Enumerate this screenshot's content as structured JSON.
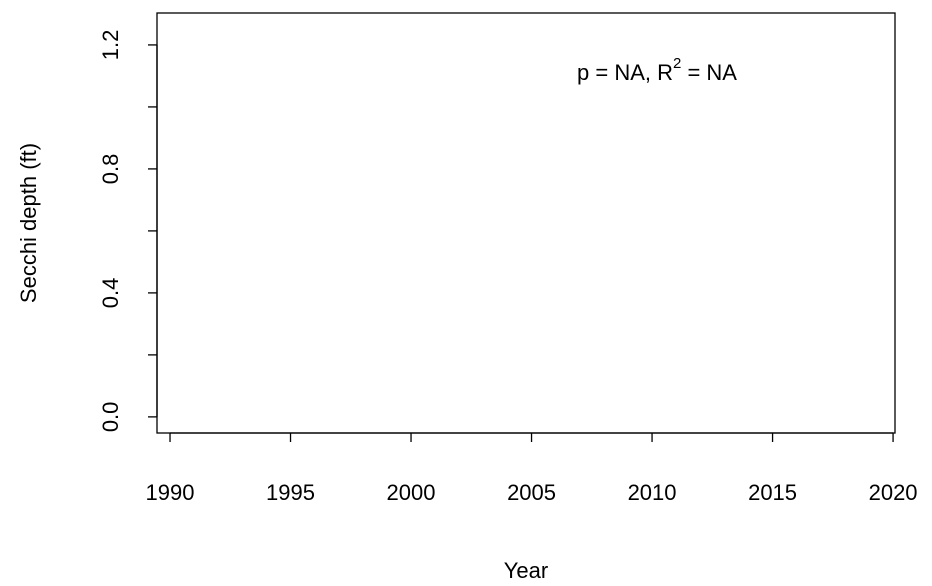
{
  "chart_data": {
    "type": "scatter",
    "xlabel": "Year",
    "ylabel": "Secchi depth (ft)",
    "annotation": {
      "text": "p = NA, R",
      "superscript": "2",
      "suffix": " = NA"
    },
    "x": [],
    "values": [],
    "xlim": [
      1989.46,
      2020.08
    ],
    "xticks": [
      1990,
      1995,
      2000,
      2005,
      2010,
      2015,
      2020
    ],
    "ylim": [
      -0.052,
      1.303
    ],
    "yticks": [
      {
        "value": 0,
        "label": "0.0"
      },
      0.4,
      0.8,
      1.2
    ],
    "yminorticks": [
      0.2,
      0.6,
      1.0
    ],
    "color": "#000000",
    "grid": false
  }
}
